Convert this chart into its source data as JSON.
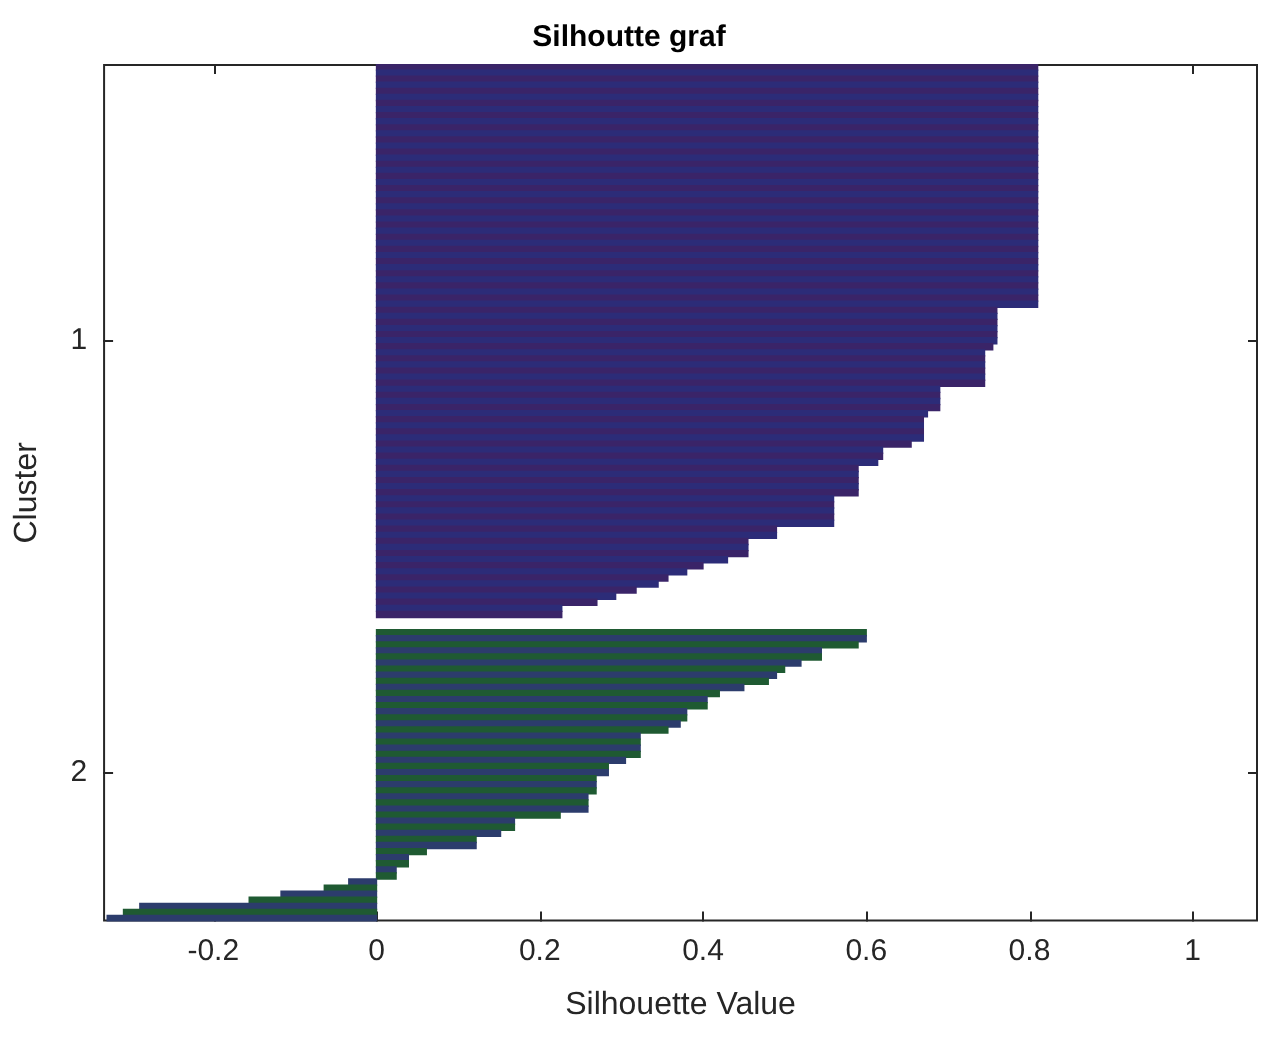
{
  "chart_data": {
    "type": "bar",
    "orientation": "horizontal",
    "title": "Silhoutte graf",
    "xlabel": "Silhouette Value",
    "ylabel": "Cluster",
    "categories": [
      null,
      null,
      null,
      null,
      null,
      null,
      null,
      null,
      null,
      null,
      null,
      null,
      null,
      null,
      null,
      null,
      null,
      null,
      null,
      null,
      null,
      null,
      null,
      null,
      null,
      null,
      null,
      null,
      null,
      null,
      null,
      null,
      null,
      null,
      null,
      null,
      null,
      null,
      null,
      null,
      null,
      null,
      null,
      null,
      null,
      "1",
      null,
      null,
      null,
      null,
      null,
      null,
      null,
      null,
      null,
      null,
      null,
      null,
      null,
      null,
      null,
      null,
      null,
      null,
      null,
      null,
      null,
      null,
      null,
      null,
      null,
      null,
      null,
      null,
      null,
      null,
      null,
      null,
      null,
      null,
      null,
      null,
      null,
      null,
      null,
      null,
      null,
      null,
      null,
      null,
      null,
      null,
      null,
      null,
      null,
      null,
      null,
      null,
      null,
      null,
      null,
      null,
      null,
      null,
      null,
      null,
      null,
      null,
      null,
      null,
      null,
      null,
      null,
      null,
      null,
      null,
      "2",
      null,
      null,
      null,
      null,
      null,
      null,
      null,
      null,
      null,
      null,
      null,
      null,
      null,
      null,
      null,
      null,
      null,
      null,
      null,
      null,
      null,
      null,
      null,
      null
    ],
    "values": [
      0.81,
      0.81,
      0.81,
      0.81,
      0.81,
      0.81,
      0.81,
      0.81,
      0.81,
      0.81,
      0.81,
      0.81,
      0.81,
      0.81,
      0.81,
      0.81,
      0.81,
      0.81,
      0.81,
      0.81,
      0.81,
      0.81,
      0.81,
      0.81,
      0.81,
      0.81,
      0.81,
      0.81,
      0.81,
      0.81,
      0.81,
      0.81,
      0.81,
      0.81,
      0.81,
      0.81,
      0.81,
      0.81,
      0.81,
      0.81,
      0.76,
      0.76,
      0.76,
      0.76,
      0.76,
      0.76,
      0.755,
      0.745,
      0.745,
      0.745,
      0.745,
      0.745,
      0.745,
      0.69,
      0.69,
      0.69,
      0.69,
      0.675,
      0.67,
      0.67,
      0.67,
      0.67,
      0.655,
      0.62,
      0.62,
      0.614,
      0.59,
      0.59,
      0.59,
      0.59,
      0.59,
      0.56,
      0.56,
      0.56,
      0.56,
      0.56,
      0.49,
      0.49,
      0.455,
      0.455,
      0.455,
      0.43,
      0.4,
      0.38,
      0.357,
      0.345,
      0.318,
      0.293,
      0.27,
      0.227,
      0.227,
      null,
      null,
      0.6,
      0.6,
      0.59,
      0.545,
      0.545,
      0.52,
      0.5,
      0.49,
      0.48,
      0.45,
      0.42,
      0.405,
      0.405,
      0.38,
      0.38,
      0.372,
      0.357,
      0.323,
      0.323,
      0.323,
      0.323,
      0.305,
      0.284,
      0.284,
      0.269,
      0.269,
      0.269,
      0.259,
      0.259,
      0.259,
      0.225,
      0.169,
      0.169,
      0.152,
      0.122,
      0.122,
      0.061,
      0.039,
      0.039,
      0.024,
      0.024,
      -0.034,
      -0.064,
      -0.117,
      -0.156,
      -0.29,
      -0.31,
      -0.33
    ],
    "colors": [
      "#3a2468",
      "#2c2c78",
      "#3a2468",
      "#2c2c78",
      "#3a2468",
      "#2c2c78",
      "#3a2468",
      "#2c2c78",
      "#3a2468",
      "#2c2c78",
      "#3a2468",
      "#2c2c78",
      "#3a2468",
      "#2c2c78",
      "#3a2468",
      "#2c2c78",
      "#3a2468",
      "#2c2c78",
      "#3a2468",
      "#2c2c78",
      "#3a2468",
      "#2c2c78",
      "#3a2468",
      "#2c2c78",
      "#3a2468",
      "#2c2c78",
      "#3a2468",
      "#2c2c78",
      "#3a2468",
      "#2c2c78",
      "#3a2468",
      "#2c2c78",
      "#3a2468",
      "#2c2c78",
      "#3a2468",
      "#2c2c78",
      "#3a2468",
      "#2c2c78",
      "#3a2468",
      "#2c2c78",
      "#3a2468",
      "#2c2c78",
      "#3a2468",
      "#2c2c78",
      "#3a2468",
      "#2c2c78",
      "#3a2468",
      "#2c2c78",
      "#3a2468",
      "#2c2c78",
      "#3a2468",
      "#2c2c78",
      "#3a2468",
      "#2c2c78",
      "#3a2468",
      "#2c2c78",
      "#3a2468",
      "#2c2c78",
      "#3a2468",
      "#2c2c78",
      "#3a2468",
      "#2c2c78",
      "#3a2468",
      "#2c2c78",
      "#3a2468",
      "#2c2c78",
      "#3a2468",
      "#2c2c78",
      "#3a2468",
      "#2c2c78",
      "#3a2468",
      "#2c2c78",
      "#3a2468",
      "#2c2c78",
      "#3a2468",
      "#2c2c78",
      "#3a2468",
      "#2c2c78",
      "#3a2468",
      "#2c2c78",
      "#3a2468",
      "#2c2c78",
      "#3a2468",
      "#2c2c78",
      "#3a2468",
      "#2c2c78",
      "#3a2468",
      "#2c2c78",
      "#3a2468",
      "#2c2c78",
      "#3a2468",
      "#ffffff",
      "#ffffff",
      "#1f5a32",
      "#2c3c6c",
      "#1f5a32",
      "#2c3c6c",
      "#1f5a32",
      "#2c3c6c",
      "#1f5a32",
      "#2c3c6c",
      "#1f5a32",
      "#2c3c6c",
      "#1f5a32",
      "#2c3c6c",
      "#1f5a32",
      "#2c3c6c",
      "#1f5a32",
      "#2c3c6c",
      "#1f5a32",
      "#2c3c6c",
      "#1f5a32",
      "#2c3c6c",
      "#1f5a32",
      "#2c3c6c",
      "#1f5a32",
      "#2c3c6c",
      "#1f5a32",
      "#2c3c6c",
      "#1f5a32",
      "#2c3c6c",
      "#1f5a32",
      "#2c3c6c",
      "#1f5a32",
      "#2c3c6c",
      "#1f5a32",
      "#2c3c6c",
      "#1f5a32",
      "#2c3c6c",
      "#1f5a32",
      "#2c3c6c",
      "#1f5a32",
      "#2c3c6c",
      "#1f5a32",
      "#2c3c6c",
      "#1f5a32",
      "#2c3c6c",
      "#1f5a32",
      "#2c3c6c",
      "#1f5a32",
      "#2c3c6c"
    ],
    "xlim": [
      -0.335,
      1.08
    ],
    "xticks": [
      -0.2,
      0,
      0.2,
      0.4,
      0.6,
      0.8,
      1
    ]
  }
}
